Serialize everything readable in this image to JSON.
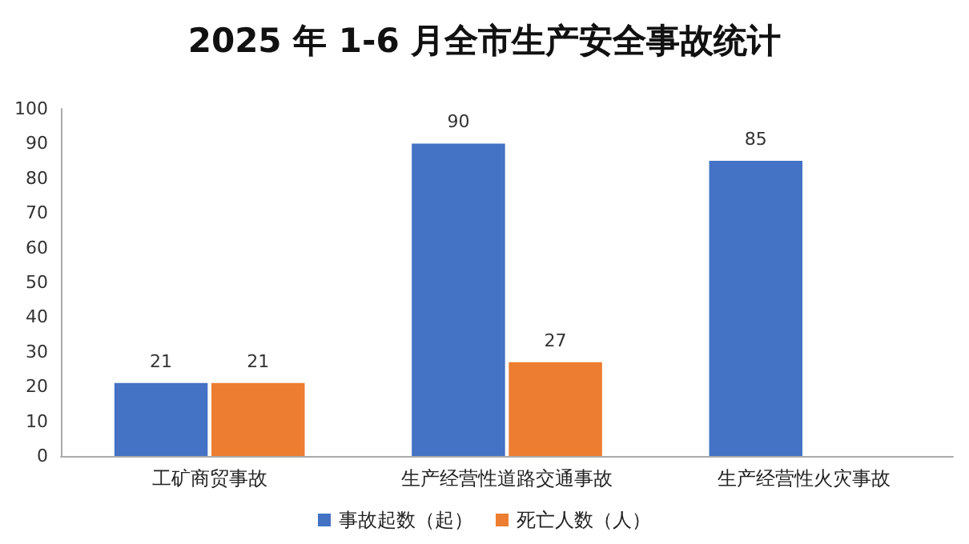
{
  "chart_data": {
    "type": "bar",
    "title": "2025 年 1-6 月全市生产安全事故统计",
    "categories": [
      "工矿商贸事故",
      "生产经营性道路交通事故",
      "生产经营性火灾事故"
    ],
    "series": [
      {
        "name": "事故起数（起）",
        "color": "#4472c4",
        "values": [
          21,
          90,
          85
        ]
      },
      {
        "name": "死亡人数（人）",
        "color": "#ed7d31",
        "values": [
          21,
          27,
          null
        ]
      }
    ],
    "ylim": [
      0,
      100
    ],
    "yticks": [
      0,
      10,
      20,
      30,
      40,
      50,
      60,
      70,
      80,
      90,
      100
    ],
    "grid": false,
    "legend": "bottom",
    "data_labels": true
  }
}
